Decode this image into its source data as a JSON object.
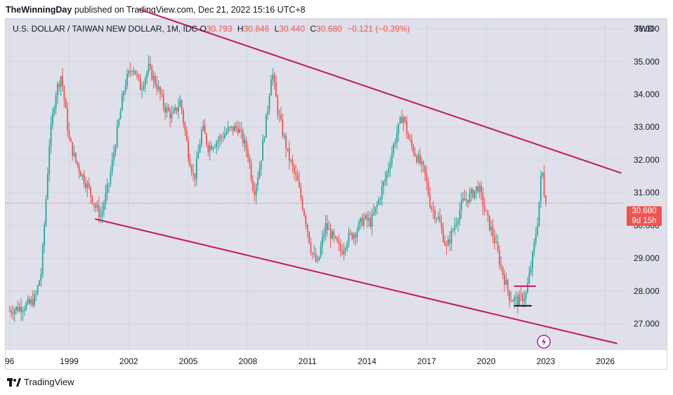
{
  "header": {
    "publisher": "TheWinningDay",
    "published_text": "published on TradingView.com, Dec 21, 2022 15:16 UTC+8"
  },
  "legend": {
    "symbol": "U.S. DOLLAR / TAIWAN NEW DOLLAR, 1M, IDC",
    "open_label": "O",
    "open": "30.793",
    "high_label": "H",
    "high": "30.846",
    "low_label": "L",
    "low": "30.440",
    "close_label": "C",
    "close": "30.680",
    "change": "−0.121 (−0.39%)"
  },
  "currency": "TWD",
  "last_price": {
    "value": "30.680",
    "countdown": "9d 15h"
  },
  "footer": {
    "brand": "TradingView"
  },
  "colors": {
    "up": "#26a69a",
    "down": "#ef5350",
    "trendline": "#c2185b",
    "plot_bg": "#dfe0ea",
    "marker": "#9c27b0"
  },
  "chart_data": {
    "type": "candlestick",
    "x_ticks": [
      "96",
      "1999",
      "2002",
      "2005",
      "2008",
      "2011",
      "2014",
      "2017",
      "2020",
      "2023",
      "2026"
    ],
    "y_ticks": [
      "27.000",
      "28.000",
      "29.000",
      "30.000",
      "31.000",
      "32.000",
      "33.000",
      "34.000",
      "35.000",
      "36.000"
    ],
    "ylim": [
      26.2,
      36.3
    ],
    "xlim": [
      1995.8,
      2027.0
    ],
    "last_close": 30.68,
    "series_path": [
      [
        1996.0,
        27.4
      ],
      [
        1996.5,
        27.5
      ],
      [
        1997.0,
        27.6
      ],
      [
        1997.3,
        27.8
      ],
      [
        1997.6,
        28.6
      ],
      [
        1997.8,
        30.5
      ],
      [
        1998.0,
        32.5
      ],
      [
        1998.3,
        34.0
      ],
      [
        1998.6,
        34.6
      ],
      [
        1998.8,
        33.6
      ],
      [
        1999.0,
        32.6
      ],
      [
        1999.3,
        32.0
      ],
      [
        1999.6,
        31.6
      ],
      [
        2000.0,
        31.1
      ],
      [
        2000.3,
        30.6
      ],
      [
        2000.6,
        30.3
      ],
      [
        2001.0,
        31.3
      ],
      [
        2001.4,
        32.8
      ],
      [
        2001.8,
        34.3
      ],
      [
        2002.2,
        34.9
      ],
      [
        2002.6,
        34.2
      ],
      [
        2003.0,
        34.8
      ],
      [
        2003.4,
        34.3
      ],
      [
        2003.8,
        33.6
      ],
      [
        2004.2,
        33.3
      ],
      [
        2004.6,
        33.8
      ],
      [
        2005.0,
        32.2
      ],
      [
        2005.3,
        31.4
      ],
      [
        2005.7,
        33.0
      ],
      [
        2006.0,
        32.4
      ],
      [
        2006.5,
        32.6
      ],
      [
        2007.0,
        32.9
      ],
      [
        2007.5,
        33.0
      ],
      [
        2008.0,
        32.2
      ],
      [
        2008.3,
        31.0
      ],
      [
        2008.6,
        31.8
      ],
      [
        2009.0,
        33.6
      ],
      [
        2009.2,
        34.8
      ],
      [
        2009.5,
        33.5
      ],
      [
        2010.0,
        32.2
      ],
      [
        2010.5,
        31.3
      ],
      [
        2010.9,
        30.2
      ],
      [
        2011.2,
        29.2
      ],
      [
        2011.5,
        28.8
      ],
      [
        2011.9,
        30.0
      ],
      [
        2012.3,
        29.6
      ],
      [
        2012.7,
        29.2
      ],
      [
        2013.0,
        29.6
      ],
      [
        2013.4,
        29.8
      ],
      [
        2013.8,
        30.2
      ],
      [
        2014.2,
        30.1
      ],
      [
        2014.6,
        30.8
      ],
      [
        2015.0,
        31.6
      ],
      [
        2015.4,
        32.6
      ],
      [
        2015.8,
        33.4
      ],
      [
        2016.1,
        32.6
      ],
      [
        2016.5,
        32.1
      ],
      [
        2016.9,
        31.6
      ],
      [
        2017.2,
        30.6
      ],
      [
        2017.6,
        30.2
      ],
      [
        2018.0,
        29.3
      ],
      [
        2018.4,
        30.0
      ],
      [
        2018.8,
        30.7
      ],
      [
        2019.2,
        30.9
      ],
      [
        2019.6,
        31.2
      ],
      [
        2020.0,
        30.3
      ],
      [
        2020.4,
        29.6
      ],
      [
        2020.8,
        28.6
      ],
      [
        2021.2,
        27.8
      ],
      [
        2021.6,
        27.7
      ],
      [
        2022.0,
        27.9
      ],
      [
        2022.3,
        28.9
      ],
      [
        2022.6,
        30.2
      ],
      [
        2022.8,
        31.8
      ],
      [
        2022.97,
        30.68
      ]
    ],
    "trendlines": [
      {
        "from": [
          2002.5,
          36.6
        ],
        "to": [
          2026.8,
          31.6
        ]
      },
      {
        "from": [
          2000.3,
          30.2
        ],
        "to": [
          2026.6,
          26.4
        ]
      }
    ],
    "range_box": {
      "x": [
        2021.4,
        2022.5
      ],
      "y": [
        27.55,
        28.15
      ]
    }
  }
}
